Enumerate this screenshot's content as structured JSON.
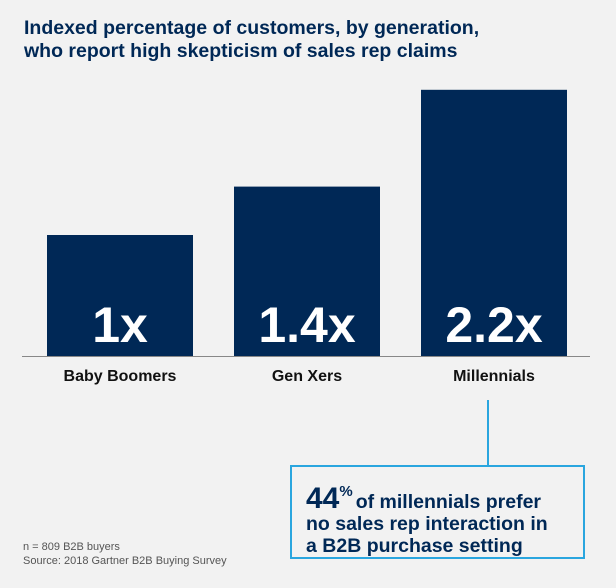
{
  "title_line1": "Indexed percentage of customers, by generation,",
  "title_line2": "who report high skepticism of sales rep claims",
  "chart_data": {
    "type": "bar",
    "title": "Indexed percentage of customers, by generation, who report high skepticism of sales rep claims",
    "categories": [
      "Baby Boomers",
      "Gen Xers",
      "Millennials"
    ],
    "values": [
      1,
      1.4,
      2.2
    ],
    "data_labels": [
      "1x",
      "1.4x",
      "2.2x"
    ],
    "xlabel": "",
    "ylabel": "",
    "ylim": [
      0,
      2.2
    ],
    "grid": false,
    "bar_color": "#002856"
  },
  "callout": {
    "number": "44",
    "unit": "%",
    "text_line1": "of millennials prefer",
    "text_line2": "no sales rep interaction in",
    "text_line3": "a B2B purchase setting",
    "border_color": "#2aa6df"
  },
  "notes": {
    "n": "n = 809 B2B buyers",
    "source": "Source: 2018 Gartner B2B Buying Survey"
  }
}
